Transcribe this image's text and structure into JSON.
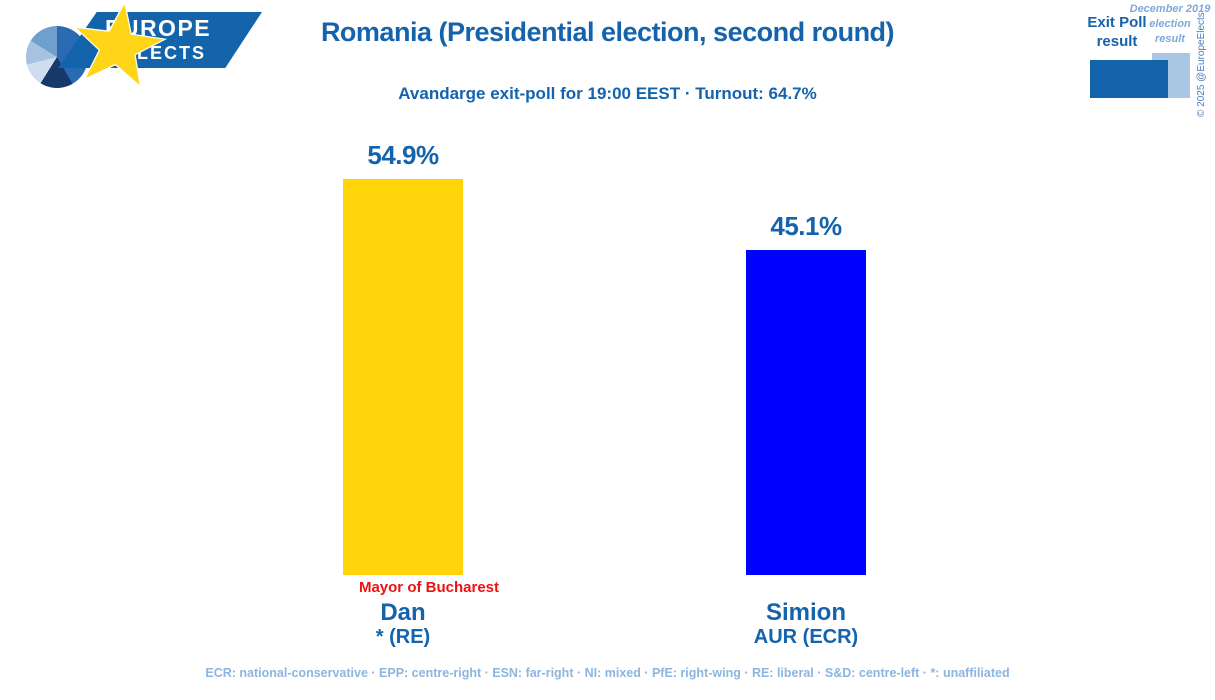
{
  "logo": {
    "line1": "EUROPE",
    "line2": "ELECTS"
  },
  "header": {
    "title": "Romania (Presidential election, second round)",
    "subtitle": "Avandarge exit-poll for 19:00 EEST · Turnout: 64.7%"
  },
  "legend": {
    "exit_poll_lines": [
      "Exit Poll",
      "result"
    ],
    "election_result_lines": [
      "December 2019",
      "election",
      "result"
    ],
    "copyright": "© 2025 @EuropeElects"
  },
  "chart_data": {
    "type": "bar",
    "title": "Romania (Presidential election, second round)",
    "subtitle": "Avandarge exit-poll for 19:00 EEST · Turnout: 64.7%",
    "categories": [
      "Dan",
      "Simion"
    ],
    "series": [
      {
        "name": "Exit Poll result",
        "values": [
          54.9,
          45.1
        ]
      }
    ],
    "ylim": [
      0,
      60
    ],
    "grid": false,
    "legend_position": "top-right",
    "bars": [
      {
        "candidate": "Dan",
        "party": "* (RE)",
        "value": 54.9,
        "value_label": "54.9%",
        "color": "#ffd50a",
        "annotation": "Mayor of Bucharest"
      },
      {
        "candidate": "Simion",
        "party": "AUR (ECR)",
        "value": 45.1,
        "value_label": "45.1%",
        "color": "#0000ff",
        "annotation": ""
      }
    ]
  },
  "footer": {
    "party_key": "ECR: national-conservative · EPP: centre-right · ESN: far-right · NI: mixed · PfE: right-wing · RE: liberal · S&D: centre-left · *: unaffiliated"
  },
  "colors": {
    "title_blue": "#1463ac",
    "bar_yellow": "#ffd50a",
    "bar_blue": "#0000ff",
    "annotation_red": "#ed1212",
    "footer_light_blue": "#8cb5df",
    "legend_light_box": "#a9c6e4",
    "legend_dark_box": "#1464ac",
    "logo_banner_blue": "#1464ac",
    "star_yellow": "#ffd617"
  }
}
